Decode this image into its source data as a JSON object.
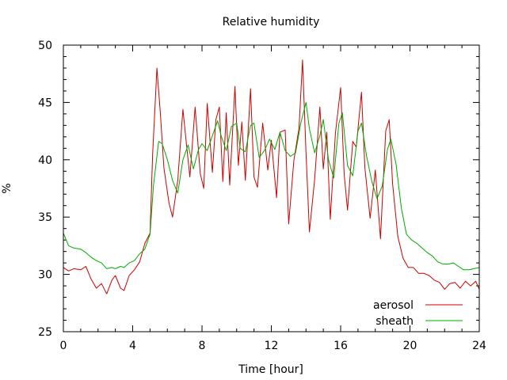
{
  "chart_data": {
    "type": "line",
    "title": "Relative humidity",
    "xlabel": "Time [hour]",
    "ylabel": "%",
    "xlim": [
      0,
      24
    ],
    "ylim": [
      25,
      50
    ],
    "x_ticks": [
      0,
      4,
      8,
      12,
      16,
      20,
      24
    ],
    "y_ticks": [
      25,
      30,
      35,
      40,
      45,
      50
    ],
    "grid": false,
    "legend_position": "bottom-right",
    "series": [
      {
        "name": "aerosol",
        "color": "#cc0000",
        "points": [
          [
            0.0,
            30.6
          ],
          [
            0.3,
            30.3
          ],
          [
            0.6,
            30.5
          ],
          [
            1.0,
            30.4
          ],
          [
            1.3,
            30.7
          ],
          [
            1.6,
            29.6
          ],
          [
            1.9,
            28.8
          ],
          [
            2.2,
            29.2
          ],
          [
            2.5,
            28.3
          ],
          [
            2.8,
            29.5
          ],
          [
            3.0,
            29.9
          ],
          [
            3.3,
            28.8
          ],
          [
            3.5,
            28.6
          ],
          [
            3.8,
            29.9
          ],
          [
            4.1,
            30.4
          ],
          [
            4.4,
            31.1
          ],
          [
            4.7,
            32.7
          ],
          [
            5.0,
            33.6
          ],
          [
            5.15,
            40.5
          ],
          [
            5.4,
            48.0
          ],
          [
            5.6,
            44.0
          ],
          [
            5.8,
            39.3
          ],
          [
            6.1,
            36.2
          ],
          [
            6.3,
            35.0
          ],
          [
            6.6,
            38.2
          ],
          [
            6.9,
            44.4
          ],
          [
            7.1,
            41.4
          ],
          [
            7.3,
            38.5
          ],
          [
            7.6,
            44.6
          ],
          [
            7.9,
            38.8
          ],
          [
            8.1,
            37.5
          ],
          [
            8.3,
            44.9
          ],
          [
            8.6,
            38.9
          ],
          [
            8.8,
            43.5
          ],
          [
            9.0,
            44.6
          ],
          [
            9.2,
            38.1
          ],
          [
            9.4,
            44.1
          ],
          [
            9.6,
            37.8
          ],
          [
            9.9,
            46.4
          ],
          [
            10.1,
            39.5
          ],
          [
            10.3,
            43.3
          ],
          [
            10.5,
            38.2
          ],
          [
            10.8,
            46.2
          ],
          [
            11.0,
            38.5
          ],
          [
            11.2,
            37.6
          ],
          [
            11.5,
            43.2
          ],
          [
            11.8,
            39.1
          ],
          [
            12.0,
            41.7
          ],
          [
            12.3,
            36.7
          ],
          [
            12.5,
            42.4
          ],
          [
            12.8,
            42.6
          ],
          [
            13.0,
            34.4
          ],
          [
            13.3,
            39.9
          ],
          [
            13.6,
            42.8
          ],
          [
            13.8,
            48.7
          ],
          [
            14.0,
            40.6
          ],
          [
            14.2,
            33.7
          ],
          [
            14.5,
            38.3
          ],
          [
            14.8,
            44.6
          ],
          [
            15.0,
            39.2
          ],
          [
            15.2,
            42.4
          ],
          [
            15.4,
            34.8
          ],
          [
            15.7,
            42.3
          ],
          [
            16.0,
            46.3
          ],
          [
            16.2,
            38.8
          ],
          [
            16.4,
            35.6
          ],
          [
            16.7,
            41.6
          ],
          [
            16.9,
            41.1
          ],
          [
            17.2,
            45.9
          ],
          [
            17.4,
            39.3
          ],
          [
            17.7,
            34.9
          ],
          [
            18.0,
            39.1
          ],
          [
            18.3,
            33.1
          ],
          [
            18.6,
            42.5
          ],
          [
            18.8,
            43.5
          ],
          [
            19.0,
            37.9
          ],
          [
            19.3,
            33.3
          ],
          [
            19.6,
            31.4
          ],
          [
            19.9,
            30.6
          ],
          [
            20.2,
            30.6
          ],
          [
            20.5,
            30.1
          ],
          [
            20.8,
            30.1
          ],
          [
            21.1,
            29.9
          ],
          [
            21.4,
            29.5
          ],
          [
            21.7,
            29.3
          ],
          [
            22.0,
            28.7
          ],
          [
            22.3,
            29.2
          ],
          [
            22.6,
            29.3
          ],
          [
            22.9,
            28.8
          ],
          [
            23.2,
            29.4
          ],
          [
            23.5,
            29.0
          ],
          [
            23.8,
            29.4
          ],
          [
            24.0,
            28.7
          ]
        ]
      },
      {
        "name": "sheath",
        "color": "#00aa00",
        "points": [
          [
            0.0,
            33.6
          ],
          [
            0.3,
            32.5
          ],
          [
            0.6,
            32.3
          ],
          [
            1.0,
            32.2
          ],
          [
            1.3,
            31.9
          ],
          [
            1.6,
            31.5
          ],
          [
            1.9,
            31.2
          ],
          [
            2.2,
            31.0
          ],
          [
            2.5,
            30.5
          ],
          [
            2.8,
            30.6
          ],
          [
            3.0,
            30.5
          ],
          [
            3.3,
            30.7
          ],
          [
            3.5,
            30.6
          ],
          [
            3.8,
            31.0
          ],
          [
            4.1,
            31.2
          ],
          [
            4.4,
            31.8
          ],
          [
            4.7,
            32.2
          ],
          [
            5.0,
            33.5
          ],
          [
            5.2,
            37.8
          ],
          [
            5.5,
            41.6
          ],
          [
            5.7,
            41.4
          ],
          [
            6.0,
            40.0
          ],
          [
            6.3,
            38.2
          ],
          [
            6.6,
            37.1
          ],
          [
            6.9,
            40.0
          ],
          [
            7.2,
            41.3
          ],
          [
            7.5,
            39.2
          ],
          [
            7.8,
            40.9
          ],
          [
            8.0,
            41.4
          ],
          [
            8.3,
            40.8
          ],
          [
            8.6,
            42.1
          ],
          [
            8.9,
            43.4
          ],
          [
            9.1,
            42.1
          ],
          [
            9.4,
            40.8
          ],
          [
            9.7,
            42.9
          ],
          [
            10.0,
            43.2
          ],
          [
            10.2,
            41.0
          ],
          [
            10.5,
            40.7
          ],
          [
            10.8,
            43.0
          ],
          [
            11.0,
            43.2
          ],
          [
            11.3,
            40.2
          ],
          [
            11.6,
            40.8
          ],
          [
            11.9,
            41.8
          ],
          [
            12.2,
            40.9
          ],
          [
            12.5,
            42.4
          ],
          [
            12.8,
            40.8
          ],
          [
            13.1,
            40.3
          ],
          [
            13.4,
            40.6
          ],
          [
            13.7,
            43.2
          ],
          [
            14.0,
            45.0
          ],
          [
            14.2,
            42.7
          ],
          [
            14.5,
            40.6
          ],
          [
            14.8,
            42.1
          ],
          [
            15.0,
            43.5
          ],
          [
            15.3,
            40.0
          ],
          [
            15.6,
            38.4
          ],
          [
            15.9,
            43.2
          ],
          [
            16.1,
            44.1
          ],
          [
            16.4,
            39.5
          ],
          [
            16.7,
            38.6
          ],
          [
            17.0,
            42.5
          ],
          [
            17.2,
            43.2
          ],
          [
            17.5,
            40.3
          ],
          [
            17.8,
            38.1
          ],
          [
            18.1,
            36.6
          ],
          [
            18.4,
            37.7
          ],
          [
            18.7,
            40.9
          ],
          [
            18.9,
            41.8
          ],
          [
            19.2,
            39.6
          ],
          [
            19.5,
            35.8
          ],
          [
            19.8,
            33.5
          ],
          [
            20.1,
            33.0
          ],
          [
            20.4,
            32.7
          ],
          [
            20.7,
            32.3
          ],
          [
            21.0,
            31.9
          ],
          [
            21.3,
            31.6
          ],
          [
            21.6,
            31.1
          ],
          [
            21.9,
            30.9
          ],
          [
            22.2,
            30.9
          ],
          [
            22.5,
            31.0
          ],
          [
            22.8,
            30.7
          ],
          [
            23.1,
            30.4
          ],
          [
            23.4,
            30.4
          ],
          [
            23.7,
            30.5
          ],
          [
            24.0,
            30.6
          ]
        ]
      }
    ]
  }
}
